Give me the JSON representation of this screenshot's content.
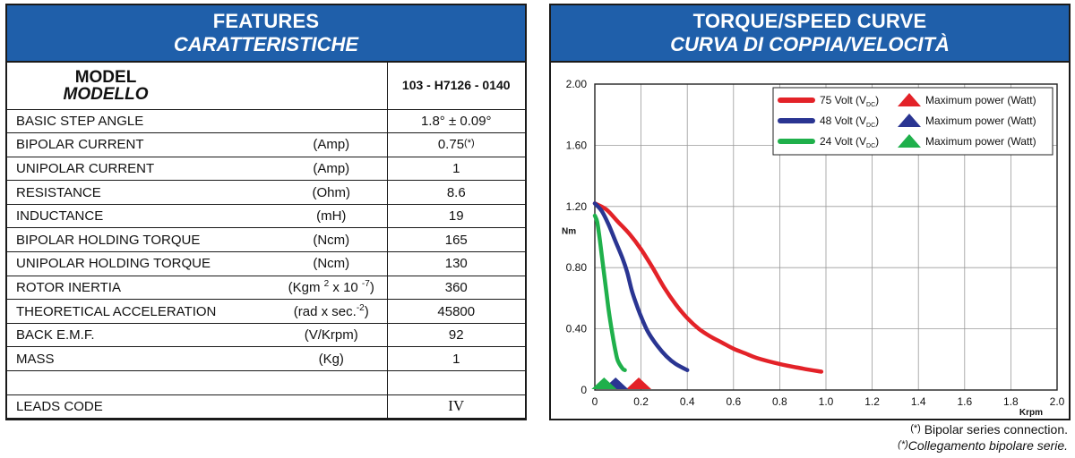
{
  "features": {
    "title_en": "FEATURES",
    "title_it": "CARATTERISTICHE",
    "model_en": "MODEL",
    "model_it": "MODELLO",
    "model_number": "103 - H7126 - 0140",
    "rows": [
      {
        "name": "BASIC STEP ANGLE",
        "unit": "",
        "value": "1.8°  ± 0.09°"
      },
      {
        "name": "BIPOLAR CURRENT",
        "unit": "(Amp)",
        "value": "0.75",
        "mark": "(*)"
      },
      {
        "name": "UNIPOLAR CURRENT",
        "unit": "(Amp)",
        "value": "1"
      },
      {
        "name": "RESISTANCE",
        "unit": "(Ohm)",
        "value": "8.6"
      },
      {
        "name": "INDUCTANCE",
        "unit": "(mH)",
        "value": "19"
      },
      {
        "name": "BIPOLAR HOLDING TORQUE",
        "unit": "(Ncm)",
        "value": "165"
      },
      {
        "name": "UNIPOLAR HOLDING TORQUE",
        "unit": "(Ncm)",
        "value": "130"
      },
      {
        "name": "ROTOR INERTIA",
        "unit_pre": "(Kgm ",
        "unit_sup1": "2",
        "unit_mid": " x 10 ",
        "unit_sup2": "-7",
        "unit_post": ")",
        "value": "360"
      },
      {
        "name": "THEORETICAL ACCELERATION",
        "unit_pre": "(rad x sec.",
        "unit_sup1": "-2",
        "unit_post": ")",
        "value": "45800"
      },
      {
        "name": "BACK E.M.F.",
        "unit": "(V/Krpm)",
        "value": "92"
      },
      {
        "name": "MASS",
        "unit": "(Kg)",
        "value": "1"
      },
      {
        "name": "",
        "unit": "",
        "value": ""
      },
      {
        "name": "LEADS CODE",
        "unit": "",
        "value": "IV"
      }
    ]
  },
  "chart_title_en": "TORQUE/SPEED CURVE",
  "chart_title_it": "CURVA DI COPPIA/VELOCITÀ",
  "footnote_mark": "(*)",
  "footnote_en": "Bipolar series connection.",
  "footnote_it": "Collegamento bipolare serie.",
  "colors": {
    "header_blue": "#1f5faa",
    "red": "#e32228",
    "blue": "#2a3592",
    "green": "#1fb04b"
  },
  "chart_data": {
    "type": "line",
    "title": "TORQUE/SPEED CURVE",
    "xlabel": "Krpm",
    "ylabel": "Nm",
    "xlim": [
      0,
      2.0
    ],
    "ylim": [
      0,
      2.0
    ],
    "xticks": [
      "0",
      "0.2",
      "0.4",
      "0.6",
      "0.8",
      "1.0",
      "1.2",
      "1.4",
      "1.6",
      "1.8",
      "2.0"
    ],
    "yticks": [
      "0",
      "0.40",
      "0.80",
      "1.20",
      "1.60",
      "2.00"
    ],
    "grid": true,
    "legend_position": "top-right",
    "legend_suffix": "Maximum power (Watt)",
    "series": [
      {
        "name": "75 Volt (V",
        "subscript": "DC",
        "close": ")",
        "color": "#e32228",
        "points": [
          [
            0.0,
            1.22
          ],
          [
            0.05,
            1.18
          ],
          [
            0.1,
            1.1
          ],
          [
            0.15,
            1.02
          ],
          [
            0.2,
            0.92
          ],
          [
            0.25,
            0.8
          ],
          [
            0.3,
            0.67
          ],
          [
            0.35,
            0.56
          ],
          [
            0.4,
            0.47
          ],
          [
            0.45,
            0.4
          ],
          [
            0.5,
            0.35
          ],
          [
            0.55,
            0.31
          ],
          [
            0.6,
            0.27
          ],
          [
            0.65,
            0.24
          ],
          [
            0.7,
            0.21
          ],
          [
            0.8,
            0.17
          ],
          [
            0.9,
            0.14
          ],
          [
            0.98,
            0.12
          ]
        ],
        "max_power_x": 0.19
      },
      {
        "name": "48 Volt (V",
        "subscript": "DC",
        "close": ")",
        "color": "#2a3592",
        "points": [
          [
            0.0,
            1.22
          ],
          [
            0.03,
            1.17
          ],
          [
            0.06,
            1.08
          ],
          [
            0.09,
            0.97
          ],
          [
            0.12,
            0.86
          ],
          [
            0.14,
            0.77
          ],
          [
            0.16,
            0.65
          ],
          [
            0.18,
            0.56
          ],
          [
            0.2,
            0.48
          ],
          [
            0.23,
            0.38
          ],
          [
            0.27,
            0.29
          ],
          [
            0.31,
            0.22
          ],
          [
            0.35,
            0.17
          ],
          [
            0.4,
            0.13
          ]
        ],
        "max_power_x": 0.09
      },
      {
        "name": "24 Volt (V",
        "subscript": "DC",
        "close": ")",
        "color": "#1fb04b",
        "points": [
          [
            0.0,
            1.14
          ],
          [
            0.01,
            1.1
          ],
          [
            0.02,
            1.0
          ],
          [
            0.03,
            0.88
          ],
          [
            0.04,
            0.76
          ],
          [
            0.05,
            0.64
          ],
          [
            0.06,
            0.52
          ],
          [
            0.07,
            0.42
          ],
          [
            0.08,
            0.33
          ],
          [
            0.09,
            0.25
          ],
          [
            0.1,
            0.19
          ],
          [
            0.12,
            0.14
          ],
          [
            0.13,
            0.13
          ]
        ],
        "max_power_x": 0.04
      }
    ]
  }
}
